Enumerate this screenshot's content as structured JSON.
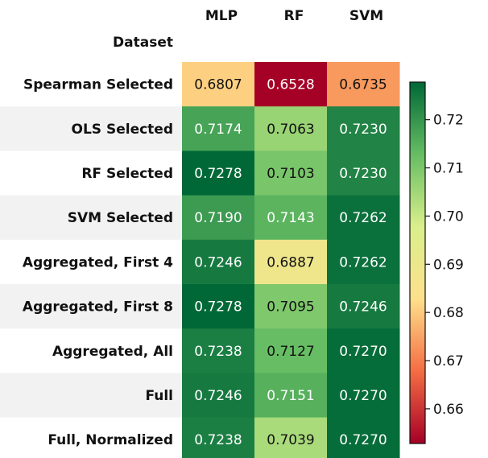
{
  "chart_data": {
    "type": "heatmap",
    "index_name": "Dataset",
    "columns": [
      "MLP",
      "RF",
      "SVM"
    ],
    "rows": [
      {
        "label": "Spearman Selected",
        "values": [
          0.6807,
          0.6528,
          0.6735
        ],
        "display": [
          "0.6807",
          "0.6528",
          "0.6735"
        ]
      },
      {
        "label": "OLS Selected",
        "values": [
          0.7174,
          0.7063,
          0.723
        ],
        "display": [
          "0.7174",
          "0.7063",
          "0.7230"
        ]
      },
      {
        "label": "RF Selected",
        "values": [
          0.7278,
          0.7103,
          0.723
        ],
        "display": [
          "0.7278",
          "0.7103",
          "0.7230"
        ]
      },
      {
        "label": "SVM Selected",
        "values": [
          0.719,
          0.7143,
          0.7262
        ],
        "display": [
          "0.7190",
          "0.7143",
          "0.7262"
        ]
      },
      {
        "label": "Aggregated, First 4",
        "values": [
          0.7246,
          0.6887,
          0.7262
        ],
        "display": [
          "0.7246",
          "0.6887",
          "0.7262"
        ]
      },
      {
        "label": "Aggregated, First 8",
        "values": [
          0.7278,
          0.7095,
          0.7246
        ],
        "display": [
          "0.7278",
          "0.7095",
          "0.7246"
        ]
      },
      {
        "label": "Aggregated, All",
        "values": [
          0.7238,
          0.7127,
          0.727
        ],
        "display": [
          "0.7238",
          "0.7127",
          "0.7270"
        ]
      },
      {
        "label": "Full",
        "values": [
          0.7246,
          0.7151,
          0.727
        ],
        "display": [
          "0.7246",
          "0.7151",
          "0.7270"
        ]
      },
      {
        "label": "Full, Normalized",
        "values": [
          0.7238,
          0.7039,
          0.727
        ],
        "display": [
          "0.7238",
          "0.7039",
          "0.7270"
        ]
      }
    ],
    "colormap": "RdYlGn",
    "colormap_stops": [
      "#a50026",
      "#f46d43",
      "#fee08b",
      "#d9ef8b",
      "#66bd63",
      "#006837"
    ],
    "color_range": [
      0.6528,
      0.7278
    ],
    "colorbar": {
      "placement": "right",
      "ticks": [
        0.66,
        0.67,
        0.68,
        0.69,
        0.7,
        0.71,
        0.72
      ],
      "tick_labels": [
        "0.66",
        "0.67",
        "0.68",
        "0.69",
        "0.70",
        "0.71",
        "0.72"
      ]
    },
    "row_band_color": "#f2f2f2",
    "text_colors": {
      "dark": "#111111",
      "light": "#ffffff"
    }
  }
}
